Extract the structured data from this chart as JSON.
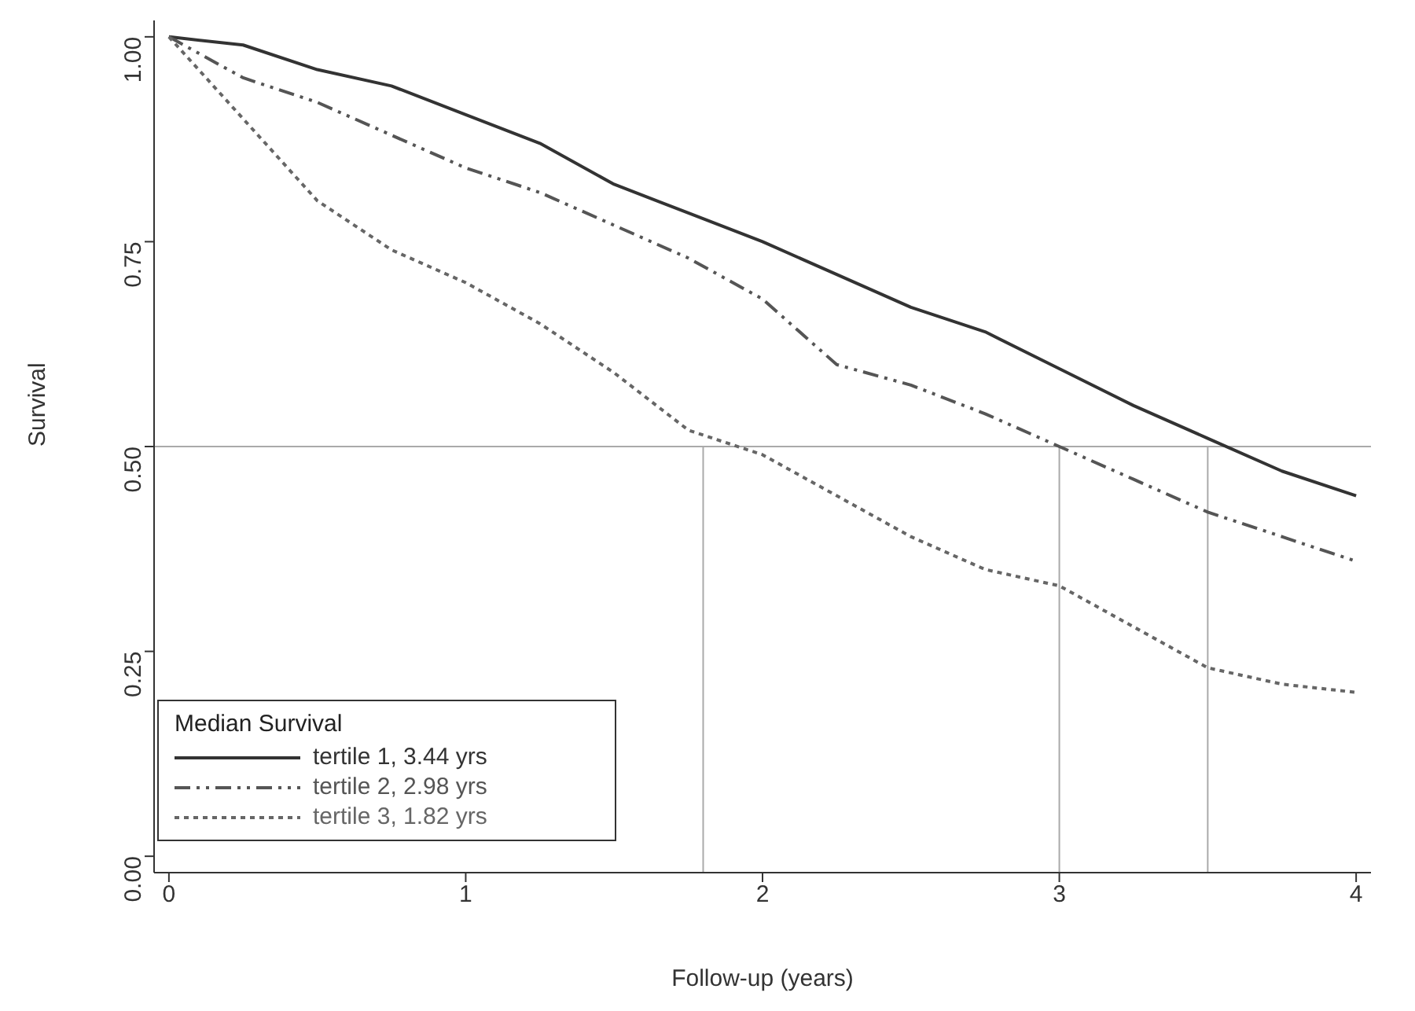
{
  "chart_data": {
    "type": "line",
    "xlabel": "Follow-up (years)",
    "ylabel": "Survival",
    "legend_title": "Median Survival",
    "xlim": [
      -0.05,
      4.05
    ],
    "ylim": [
      -0.02,
      1.02
    ],
    "xticks": [
      0,
      1,
      2,
      3,
      4
    ],
    "yticks": [
      {
        "value": 0,
        "label": "0.00"
      },
      {
        "value": 0.25,
        "label": "0.25"
      },
      {
        "value": 0.5,
        "label": "0.50"
      },
      {
        "value": 0.75,
        "label": "0.75"
      },
      {
        "value": 1,
        "label": "1.00"
      }
    ],
    "grid": false,
    "legend": "bottom left",
    "marker": "none",
    "x": [
      0,
      0.25,
      0.5,
      0.75,
      1,
      1.25,
      1.5,
      1.75,
      2,
      2.25,
      2.5,
      2.75,
      3,
      3.25,
      3.5,
      3.75,
      4
    ],
    "series": [
      {
        "name": "tertile 1, 3.44 yrs",
        "color": "#333333",
        "line_style": "solid",
        "values": [
          1,
          0.99,
          0.96,
          0.94,
          0.905,
          0.87,
          0.82,
          0.785,
          0.75,
          0.71,
          0.67,
          0.64,
          0.595,
          0.55,
          0.51,
          0.47,
          0.44
        ]
      },
      {
        "name": "tertile 2, 2.98 yrs",
        "color": "#555555",
        "line_style": "dashed",
        "values": [
          1,
          0.95,
          0.92,
          0.88,
          0.84,
          0.81,
          0.77,
          0.73,
          0.68,
          0.6,
          0.575,
          0.54,
          0.5,
          0.46,
          0.42,
          0.39,
          0.36
        ]
      },
      {
        "name": "tertile 3, 1.82 yrs",
        "color": "#666666",
        "line_style": "dotted",
        "values": [
          1,
          0.9,
          0.8,
          0.74,
          0.7,
          0.65,
          0.59,
          0.52,
          0.49,
          0.44,
          0.39,
          0.35,
          0.33,
          0.28,
          0.23,
          0.21,
          0.2
        ]
      }
    ],
    "ref_lines": [
      {
        "axis": "y",
        "value": 0.5,
        "color": "#aaaaaa"
      },
      {
        "axis": "x",
        "value": 1.8,
        "color": "#aaaaaa"
      },
      {
        "axis": "x",
        "value": 3.0,
        "color": "#aaaaaa"
      },
      {
        "axis": "x",
        "value": 3.5,
        "color": "#aaaaaa"
      }
    ]
  }
}
